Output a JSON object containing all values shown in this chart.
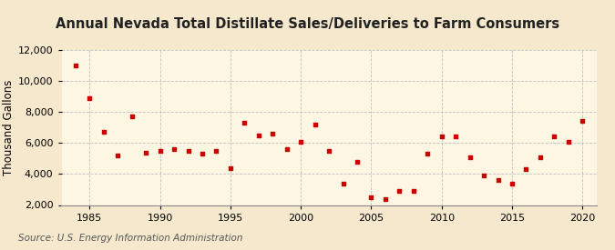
{
  "title": "Annual Nevada Total Distillate Sales/Deliveries to Farm Consumers",
  "ylabel": "Thousand Gallons",
  "source": "Source: U.S. Energy Information Administration",
  "background_color": "#f5e8cc",
  "plot_background_color": "#fdf6e3",
  "marker_color": "#cc0000",
  "years": [
    1984,
    1985,
    1986,
    1987,
    1988,
    1989,
    1990,
    1991,
    1992,
    1993,
    1994,
    1995,
    1996,
    1997,
    1998,
    1999,
    2000,
    2001,
    2002,
    2003,
    2004,
    2005,
    2006,
    2007,
    2008,
    2009,
    2010,
    2011,
    2012,
    2013,
    2014,
    2015,
    2016,
    2017,
    2018,
    2019,
    2020
  ],
  "values": [
    11000,
    8900,
    6700,
    5200,
    7700,
    5400,
    5500,
    5600,
    5500,
    5300,
    5500,
    4400,
    7300,
    6500,
    6600,
    5600,
    6100,
    7200,
    5500,
    3400,
    4800,
    2500,
    2400,
    2900,
    2900,
    5300,
    6400,
    6400,
    5100,
    3900,
    3600,
    3400,
    4300,
    5100,
    6400,
    6100,
    7400
  ],
  "ylim": [
    2000,
    12000
  ],
  "yticks": [
    2000,
    4000,
    6000,
    8000,
    10000,
    12000
  ],
  "xlim": [
    1983,
    2021
  ],
  "xticks": [
    1985,
    1990,
    1995,
    2000,
    2005,
    2010,
    2015,
    2020
  ],
  "grid_color": "#bbbbbb",
  "title_fontsize": 10.5,
  "label_fontsize": 8.5,
  "tick_fontsize": 8,
  "source_fontsize": 7.5
}
